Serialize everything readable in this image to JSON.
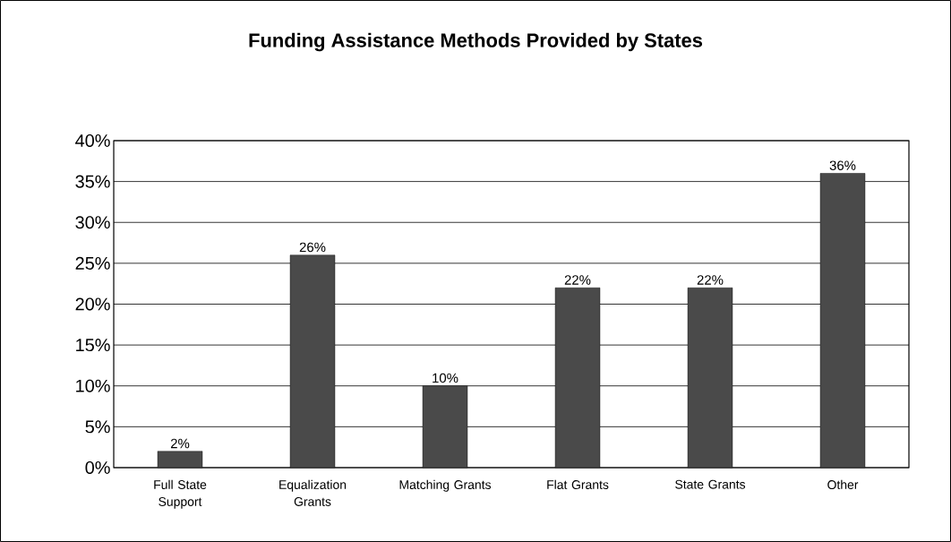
{
  "chart_data": {
    "type": "bar",
    "title": "Funding Assistance Methods Provided by States",
    "categories": [
      "Full State Support",
      "Equalization Grants",
      "Matching Grants",
      "Flat Grants",
      "State Grants",
      "Other"
    ],
    "values": [
      2,
      26,
      10,
      22,
      22,
      36
    ],
    "value_labels": [
      "2%",
      "26%",
      "10%",
      "22%",
      "22%",
      "36%"
    ],
    "color": "#4a4a4a",
    "ylim": [
      0,
      40
    ],
    "yticks": [
      {
        "value": 0,
        "label": "0%"
      },
      {
        "value": 5,
        "label": "5%"
      },
      {
        "value": 10,
        "label": "10%"
      },
      {
        "value": 15,
        "label": "15%"
      },
      {
        "value": 20,
        "label": "20%"
      },
      {
        "value": 25,
        "label": "25%"
      },
      {
        "value": 30,
        "label": "30%"
      },
      {
        "value": 35,
        "label": "35%"
      },
      {
        "value": 40,
        "label": "40%"
      }
    ],
    "grid": "y"
  }
}
